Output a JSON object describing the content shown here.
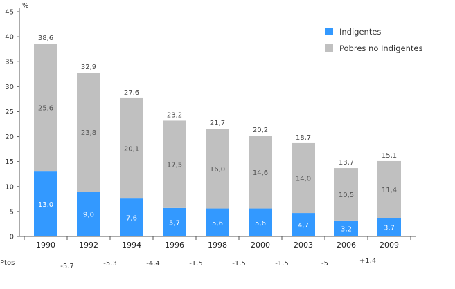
{
  "chart_data": {
    "type": "bar",
    "stacked": true,
    "ylabel": "%",
    "ylim": [
      0,
      45
    ],
    "yticks": [
      0,
      5,
      10,
      15,
      20,
      25,
      30,
      35,
      40,
      45
    ],
    "grid": false,
    "legend_position": "top-right",
    "categories": [
      "1990",
      "1992",
      "1994",
      "1996",
      "1998",
      "2000",
      "2003",
      "2006",
      "2009"
    ],
    "series": [
      {
        "name": "Indigentes",
        "color": "#3399ff",
        "values": [
          13.0,
          9.0,
          7.6,
          5.7,
          5.6,
          5.6,
          4.7,
          3.2,
          3.7
        ],
        "labels": [
          "13,0",
          "9,0",
          "7,6",
          "5,7",
          "5,6",
          "5,6",
          "4,7",
          "3,2",
          "3,7"
        ]
      },
      {
        "name": "Pobres no Indigentes",
        "color": "#c0c0c0",
        "values": [
          25.6,
          23.8,
          20.1,
          17.5,
          16.0,
          14.6,
          14.0,
          10.5,
          11.4
        ],
        "labels": [
          "25,6",
          "23,8",
          "20,1",
          "17,5",
          "16,0",
          "14,6",
          "14,0",
          "10,5",
          "11,4"
        ]
      }
    ],
    "totals": [
      38.6,
      32.9,
      27.6,
      23.2,
      21.7,
      20.2,
      18.7,
      13.7,
      15.1
    ],
    "total_labels": [
      "38,6",
      "32,9",
      "27,6",
      "23,2",
      "21,7",
      "20,2",
      "18,7",
      "13,7",
      "15,1"
    ],
    "pts_row": {
      "label": "Ptos",
      "values": [
        "-5.7",
        "-5.3",
        "-4.4",
        "-1.5",
        "-1.5",
        "-1.5",
        "-5",
        "+1.4"
      ]
    }
  }
}
